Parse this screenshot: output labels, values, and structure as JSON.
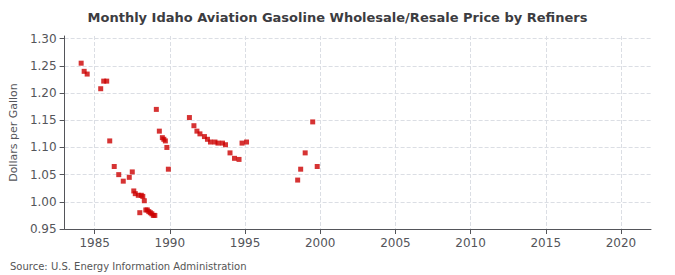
{
  "chart_data": {
    "type": "scatter",
    "title": "Monthly Idaho Aviation Gasoline Wholesale/Resale Price by Refiners",
    "ylabel": "Dollars per Gallon",
    "annotations": [
      "Source: U.S. Energy Information Administration"
    ],
    "color": "#cc0000",
    "marker": "square",
    "grid": true,
    "xlim": [
      1983,
      2022
    ],
    "ylim": [
      0.95,
      1.305
    ],
    "xticks": [
      1985,
      1990,
      1995,
      2000,
      2005,
      2010,
      2015,
      2020
    ],
    "yticks": [
      0.95,
      {
        "value": 1.0,
        "label": "1.00"
      },
      1.05,
      {
        "value": 1.1,
        "label": "1.10"
      },
      1.15,
      {
        "value": 1.2,
        "label": "1.20"
      },
      1.25,
      {
        "value": 1.3,
        "label": "1.30"
      }
    ],
    "x": [
      1984.1,
      1984.3,
      1984.5,
      1985.4,
      1985.6,
      1985.8,
      1986.0,
      1986.3,
      1986.6,
      1986.9,
      1987.3,
      1987.5,
      1987.6,
      1987.7,
      1987.9,
      1988.0,
      1988.1,
      1988.2,
      1988.3,
      1988.4,
      1988.5,
      1988.6,
      1988.7,
      1988.8,
      1988.9,
      1989.0,
      1989.1,
      1989.3,
      1989.5,
      1989.6,
      1989.7,
      1989.8,
      1989.9,
      1991.3,
      1991.6,
      1991.8,
      1992.0,
      1992.3,
      1992.5,
      1992.7,
      1993.0,
      1993.2,
      1993.5,
      1993.7,
      1994.0,
      1994.3,
      1994.6,
      1994.8,
      1995.1,
      1998.5,
      1998.7,
      1999.0,
      1999.5,
      1999.8
    ],
    "values": [
      1.255,
      1.24,
      1.235,
      1.208,
      1.222,
      1.222,
      1.112,
      1.065,
      1.05,
      1.038,
      1.045,
      1.055,
      1.02,
      1.015,
      1.012,
      0.98,
      1.012,
      1.01,
      1.002,
      0.985,
      0.985,
      0.982,
      0.98,
      0.978,
      0.975,
      0.975,
      1.17,
      1.13,
      1.118,
      1.115,
      1.112,
      1.1,
      1.06,
      1.155,
      1.14,
      1.13,
      1.125,
      1.12,
      1.115,
      1.11,
      1.11,
      1.108,
      1.108,
      1.105,
      1.09,
      1.08,
      1.078,
      1.108,
      1.11,
      1.04,
      1.06,
      1.09,
      1.147,
      1.065
    ]
  }
}
